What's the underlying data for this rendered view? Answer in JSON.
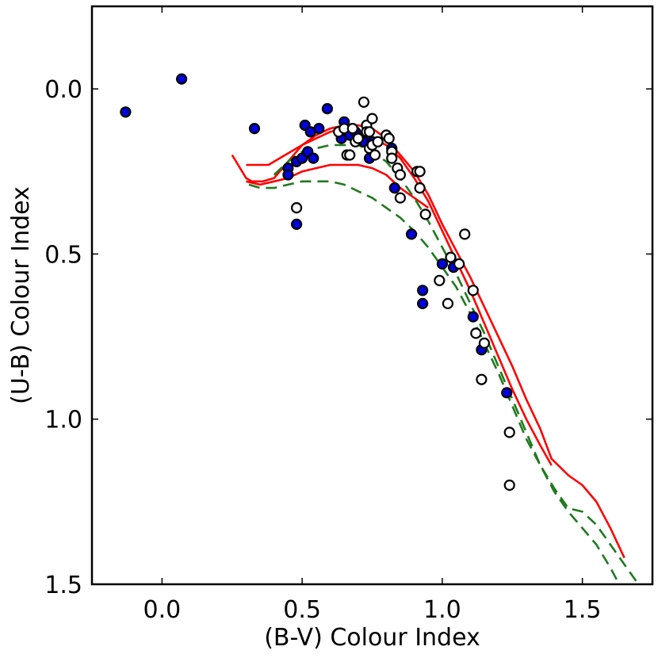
{
  "chart_data": {
    "type": "scatter",
    "title": "",
    "xlabel": "(B-V) Colour Index",
    "ylabel": "(U-B) Colour Index",
    "xlim": [
      -0.25,
      1.75
    ],
    "ylim": [
      1.5,
      -0.25
    ],
    "y_inverted": true,
    "grid": false,
    "x_ticks": [
      {
        "value": 0.0,
        "label": "0.0"
      },
      {
        "value": 0.5,
        "label": "0.5"
      },
      {
        "value": 1.0,
        "label": "1.0"
      },
      {
        "value": 1.5,
        "label": "1.5"
      }
    ],
    "y_ticks": [
      {
        "value": 0.0,
        "label": "0.0"
      },
      {
        "value": 0.5,
        "label": "0.5"
      },
      {
        "value": 1.0,
        "label": "1.0"
      },
      {
        "value": 1.5,
        "label": "1.5"
      }
    ],
    "colors": {
      "filled_marker": "#0000dd",
      "open_marker": "#ffffff",
      "marker_edge": "#000000",
      "solid_line": "#ff0000",
      "dashed_line": "#1f7a1f"
    },
    "series": [
      {
        "name": "filled-points",
        "style": "filled-circle",
        "points": [
          [
            -0.13,
            0.07
          ],
          [
            0.07,
            -0.03
          ],
          [
            0.33,
            0.12
          ],
          [
            0.45,
            0.24
          ],
          [
            0.45,
            0.26
          ],
          [
            0.48,
            0.22
          ],
          [
            0.48,
            0.41
          ],
          [
            0.5,
            0.21
          ],
          [
            0.51,
            0.11
          ],
          [
            0.52,
            0.19
          ],
          [
            0.53,
            0.13
          ],
          [
            0.54,
            0.21
          ],
          [
            0.56,
            0.12
          ],
          [
            0.59,
            0.06
          ],
          [
            0.64,
            0.15
          ],
          [
            0.65,
            0.1
          ],
          [
            0.67,
            0.14
          ],
          [
            0.69,
            0.13
          ],
          [
            0.72,
            0.16
          ],
          [
            0.74,
            0.21
          ],
          [
            0.75,
            0.16
          ],
          [
            0.82,
            0.18
          ],
          [
            0.83,
            0.3
          ],
          [
            0.89,
            0.44
          ],
          [
            0.93,
            0.61
          ],
          [
            0.93,
            0.65
          ],
          [
            1.0,
            0.53
          ],
          [
            1.04,
            0.54
          ],
          [
            1.11,
            0.69
          ],
          [
            1.14,
            0.79
          ],
          [
            1.23,
            0.92
          ]
        ]
      },
      {
        "name": "open-points",
        "style": "open-circle",
        "points": [
          [
            0.48,
            0.36
          ],
          [
            0.63,
            0.13
          ],
          [
            0.65,
            0.12
          ],
          [
            0.66,
            0.2
          ],
          [
            0.67,
            0.2
          ],
          [
            0.68,
            0.12
          ],
          [
            0.69,
            0.16
          ],
          [
            0.7,
            0.15
          ],
          [
            0.72,
            0.04
          ],
          [
            0.73,
            0.11
          ],
          [
            0.73,
            0.13
          ],
          [
            0.74,
            0.13
          ],
          [
            0.74,
            0.18
          ],
          [
            0.75,
            0.09
          ],
          [
            0.75,
            0.17
          ],
          [
            0.76,
            0.2
          ],
          [
            0.77,
            0.16
          ],
          [
            0.8,
            0.14
          ],
          [
            0.81,
            0.15
          ],
          [
            0.82,
            0.19
          ],
          [
            0.82,
            0.21
          ],
          [
            0.84,
            0.24
          ],
          [
            0.85,
            0.26
          ],
          [
            0.85,
            0.33
          ],
          [
            0.91,
            0.25
          ],
          [
            0.92,
            0.25
          ],
          [
            0.92,
            0.3
          ],
          [
            0.94,
            0.38
          ],
          [
            0.99,
            0.58
          ],
          [
            1.02,
            0.65
          ],
          [
            1.03,
            0.51
          ],
          [
            1.06,
            0.53
          ],
          [
            1.08,
            0.44
          ],
          [
            1.11,
            0.61
          ],
          [
            1.12,
            0.74
          ],
          [
            1.14,
            0.88
          ],
          [
            1.15,
            0.77
          ],
          [
            1.24,
            1.04
          ],
          [
            1.24,
            1.2
          ]
        ]
      },
      {
        "name": "solid-curve-upper",
        "style": "solid-line",
        "points": [
          [
            0.25,
            0.2
          ],
          [
            0.3,
            0.27
          ],
          [
            0.32,
            0.28
          ],
          [
            0.36,
            0.28
          ],
          [
            0.4,
            0.27
          ],
          [
            0.45,
            0.22
          ],
          [
            0.5,
            0.17
          ],
          [
            0.55,
            0.14
          ],
          [
            0.6,
            0.12
          ],
          [
            0.65,
            0.11
          ],
          [
            0.7,
            0.11
          ],
          [
            0.75,
            0.12
          ],
          [
            0.8,
            0.15
          ],
          [
            0.85,
            0.2
          ],
          [
            0.9,
            0.25
          ],
          [
            0.95,
            0.32
          ],
          [
            1.0,
            0.41
          ],
          [
            1.05,
            0.49
          ],
          [
            1.1,
            0.57
          ],
          [
            1.15,
            0.66
          ],
          [
            1.2,
            0.75
          ],
          [
            1.25,
            0.84
          ],
          [
            1.3,
            0.94
          ],
          [
            1.35,
            1.03
          ],
          [
            1.39,
            1.12
          ],
          [
            1.45,
            1.17
          ],
          [
            1.5,
            1.2
          ],
          [
            1.55,
            1.25
          ],
          [
            1.6,
            1.33
          ],
          [
            1.65,
            1.42
          ]
        ]
      },
      {
        "name": "solid-curve-lower",
        "style": "solid-line",
        "points": [
          [
            0.3,
            0.23
          ],
          [
            0.34,
            0.23
          ],
          [
            0.38,
            0.23
          ],
          [
            0.42,
            0.21
          ],
          [
            0.46,
            0.19
          ],
          [
            0.5,
            0.17
          ],
          [
            0.55,
            0.15
          ],
          [
            0.6,
            0.13
          ],
          [
            0.65,
            0.12
          ],
          [
            0.7,
            0.13
          ],
          [
            0.75,
            0.15
          ],
          [
            0.8,
            0.17
          ],
          [
            0.85,
            0.21
          ],
          [
            0.9,
            0.27
          ],
          [
            0.95,
            0.34
          ],
          [
            1.0,
            0.43
          ],
          [
            1.05,
            0.52
          ],
          [
            1.1,
            0.61
          ],
          [
            1.15,
            0.71
          ],
          [
            1.2,
            0.81
          ],
          [
            1.25,
            0.91
          ],
          [
            1.3,
            1.0
          ],
          [
            1.35,
            1.08
          ],
          [
            1.39,
            1.14
          ]
        ]
      },
      {
        "name": "solid-curve-inner",
        "style": "solid-line",
        "points": [
          [
            0.3,
            0.28
          ],
          [
            0.35,
            0.29
          ],
          [
            0.4,
            0.28
          ],
          [
            0.45,
            0.27
          ],
          [
            0.5,
            0.25
          ],
          [
            0.55,
            0.24
          ],
          [
            0.6,
            0.23
          ],
          [
            0.65,
            0.23
          ],
          [
            0.7,
            0.23
          ],
          [
            0.75,
            0.24
          ],
          [
            0.8,
            0.26
          ],
          [
            0.85,
            0.3
          ],
          [
            0.9,
            0.33
          ],
          [
            0.95,
            0.36
          ]
        ]
      },
      {
        "name": "dashed-curve-upper",
        "style": "dashed-line",
        "points": [
          [
            0.4,
            0.26
          ],
          [
            0.45,
            0.22
          ],
          [
            0.5,
            0.19
          ],
          [
            0.55,
            0.18
          ],
          [
            0.6,
            0.17
          ],
          [
            0.65,
            0.17
          ],
          [
            0.7,
            0.17
          ],
          [
            0.75,
            0.19
          ],
          [
            0.8,
            0.22
          ],
          [
            0.85,
            0.27
          ],
          [
            0.9,
            0.33
          ],
          [
            0.95,
            0.4
          ],
          [
            1.0,
            0.48
          ],
          [
            1.05,
            0.56
          ],
          [
            1.1,
            0.65
          ],
          [
            1.15,
            0.74
          ],
          [
            1.2,
            0.84
          ],
          [
            1.25,
            0.94
          ],
          [
            1.3,
            1.04
          ],
          [
            1.35,
            1.14
          ],
          [
            1.4,
            1.21
          ],
          [
            1.45,
            1.27
          ],
          [
            1.5,
            1.28
          ],
          [
            1.55,
            1.32
          ],
          [
            1.6,
            1.38
          ],
          [
            1.65,
            1.44
          ],
          [
            1.7,
            1.5
          ]
        ]
      },
      {
        "name": "dashed-curve-lower",
        "style": "dashed-line",
        "points": [
          [
            0.31,
            0.29
          ],
          [
            0.35,
            0.3
          ],
          [
            0.4,
            0.3
          ],
          [
            0.45,
            0.29
          ],
          [
            0.5,
            0.28
          ],
          [
            0.55,
            0.28
          ],
          [
            0.6,
            0.28
          ],
          [
            0.65,
            0.29
          ],
          [
            0.7,
            0.31
          ],
          [
            0.75,
            0.33
          ],
          [
            0.8,
            0.36
          ],
          [
            0.85,
            0.39
          ],
          [
            0.9,
            0.43
          ],
          [
            0.95,
            0.48
          ],
          [
            1.0,
            0.54
          ],
          [
            1.05,
            0.6
          ],
          [
            1.1,
            0.68
          ],
          [
            1.15,
            0.77
          ],
          [
            1.2,
            0.86
          ],
          [
            1.25,
            0.96
          ],
          [
            1.3,
            1.06
          ],
          [
            1.35,
            1.14
          ],
          [
            1.4,
            1.22
          ],
          [
            1.45,
            1.28
          ],
          [
            1.5,
            1.33
          ],
          [
            1.55,
            1.38
          ],
          [
            1.6,
            1.45
          ],
          [
            1.65,
            1.53
          ]
        ]
      }
    ]
  }
}
